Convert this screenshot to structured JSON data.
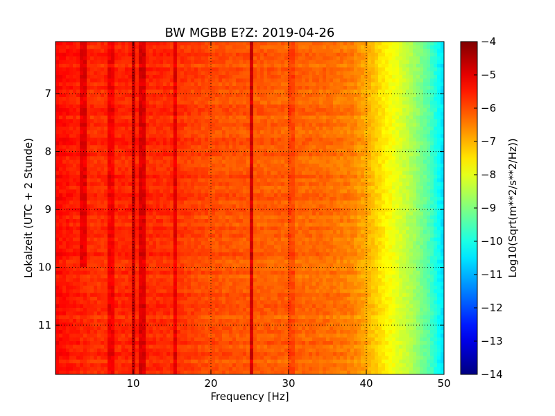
{
  "chart_data": {
    "type": "heatmap",
    "title": "BW MGBB E?Z: 2019-04-26",
    "xlabel": "Frequency [Hz]",
    "ylabel": "Lokalzeit (UTC + 2 Stunde)",
    "colorbar_label": "Log10(Sqrt(m**2/s**2/Hz))",
    "xlim": [
      0,
      50
    ],
    "ylim": [
      11.85,
      6.1
    ],
    "y_inverted": true,
    "x_ticks": [
      10,
      20,
      30,
      40,
      50
    ],
    "x_tick_labels": [
      "10",
      "20",
      "30",
      "40",
      "50"
    ],
    "y_ticks": [
      7,
      8,
      9,
      10,
      11
    ],
    "y_tick_labels": [
      "7",
      "8",
      "9",
      "10",
      "11"
    ],
    "colorbar_range": [
      -14,
      -4
    ],
    "colorbar_ticks": [
      -4,
      -5,
      -6,
      -7,
      -8,
      -9,
      -10,
      -11,
      -12,
      -13,
      -14
    ],
    "colorbar_tick_labels": [
      "−4",
      "−5",
      "−6",
      "−7",
      "−8",
      "−9",
      "−10",
      "−11",
      "−12",
      "−13",
      "−14"
    ],
    "colormap": "jet",
    "grid": true,
    "grid_style": "dotted",
    "spectrum_profile": {
      "frequency_hz": [
        0,
        2,
        5,
        10,
        15,
        20,
        25,
        30,
        35,
        38,
        40,
        42,
        44,
        46,
        48,
        50
      ],
      "log10_amplitude": [
        -5.3,
        -5.5,
        -5.7,
        -5.6,
        -5.7,
        -6.0,
        -6.1,
        -6.2,
        -6.3,
        -6.5,
        -6.9,
        -7.5,
        -8.0,
        -8.6,
        -9.4,
        -10.6
      ]
    },
    "spectral_lines": [
      {
        "frequency_hz": 3.5,
        "delta": 0.6,
        "time_range": [
          6.1,
          10.0
        ]
      },
      {
        "frequency_hz": 7.1,
        "delta": 0.5,
        "time_range": [
          6.1,
          11.85
        ]
      },
      {
        "frequency_hz": 10.0,
        "delta": 0.9,
        "time_range": [
          6.1,
          11.85
        ]
      },
      {
        "frequency_hz": 11.2,
        "delta": 0.7,
        "time_range": [
          6.1,
          11.85
        ]
      },
      {
        "frequency_hz": 15.5,
        "delta": 0.7,
        "time_range": [
          6.1,
          11.85
        ]
      },
      {
        "frequency_hz": 25.3,
        "delta": 1.3,
        "time_range": [
          6.1,
          11.85
        ]
      },
      {
        "frequency_hz": 30.4,
        "delta": 0.3,
        "time_range": [
          6.1,
          11.85
        ]
      }
    ]
  }
}
